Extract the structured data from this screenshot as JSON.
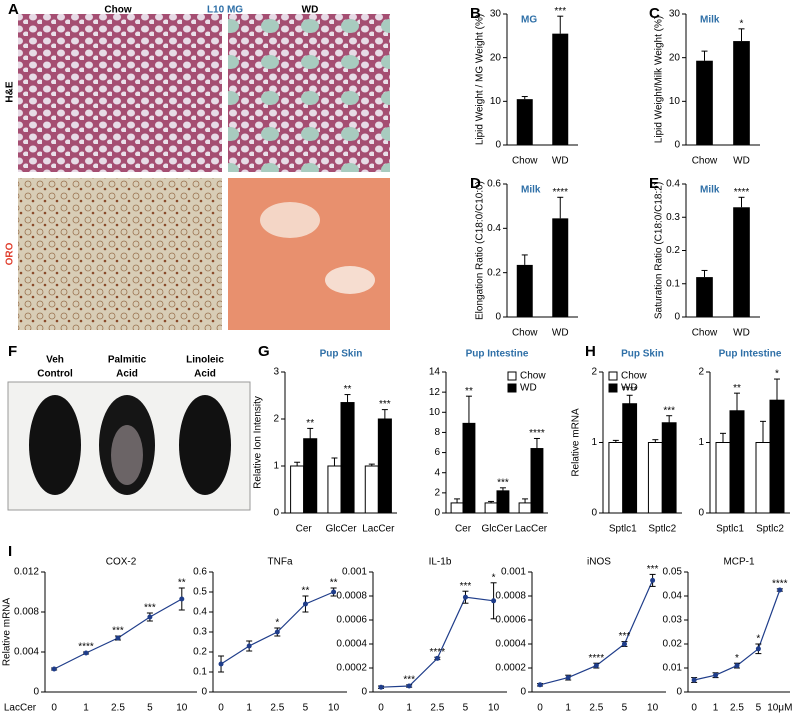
{
  "panel_a": {
    "letter": "A",
    "columns": [
      "Chow",
      "L10 MG",
      "WD"
    ],
    "rows": [
      "H&E",
      "ORO"
    ]
  },
  "panel_f": {
    "letter": "F",
    "labels": [
      [
        "Veh",
        "Control"
      ],
      [
        "Palmitic",
        "Acid"
      ],
      [
        "Linoleic",
        "Acid"
      ]
    ]
  },
  "chart_data": [
    {
      "type": "bar",
      "panel": "B",
      "title": "MG",
      "ylabel": "Lipid Weight / MG Weight (%)",
      "categories": [
        "Chow",
        "WD"
      ],
      "values": [
        10.5,
        25.5
      ],
      "errors": [
        0.6,
        4
      ],
      "significance": [
        null,
        "***"
      ],
      "color": "#000000",
      "ylim": [
        0,
        30
      ],
      "yticks": [
        0,
        10,
        20,
        30
      ]
    },
    {
      "type": "bar",
      "panel": "C",
      "title": "Milk",
      "ylabel": "Lipid Weight/Milk Weight (%)",
      "categories": [
        "Chow",
        "WD"
      ],
      "values": [
        19.3,
        23.8
      ],
      "errors": [
        2.2,
        2.8
      ],
      "significance": [
        null,
        "*"
      ],
      "color": "#000000",
      "ylim": [
        0,
        30
      ],
      "yticks": [
        0,
        10,
        20,
        30
      ]
    },
    {
      "type": "bar",
      "panel": "D",
      "title": "Milk",
      "ylabel": "Elongation Ratio (C18:0/C10:0)",
      "categories": [
        "Chow",
        "WD"
      ],
      "values": [
        0.235,
        0.445
      ],
      "errors": [
        0.045,
        0.095
      ],
      "significance": [
        null,
        "****"
      ],
      "color": "#000000",
      "ylim": [
        0,
        0.6
      ],
      "yticks": [
        0,
        0.2,
        0.4,
        0.6
      ]
    },
    {
      "type": "bar",
      "panel": "E",
      "title": "Milk",
      "ylabel": "Saturation Ratio (C18:0/C18:2)",
      "categories": [
        "Chow",
        "WD"
      ],
      "values": [
        0.12,
        0.33
      ],
      "errors": [
        0.02,
        0.03
      ],
      "significance": [
        null,
        "****"
      ],
      "color": "#000000",
      "ylim": [
        0,
        0.4
      ],
      "yticks": [
        0,
        0.1,
        0.2,
        0.3,
        0.4
      ]
    },
    {
      "type": "bar",
      "panel": "G",
      "title": "Pup Skin",
      "ylabel": "Relative Ion Intensity",
      "categories": [
        "Cer",
        "GlcCer",
        "LacCer"
      ],
      "series": [
        {
          "name": "Chow",
          "color": "#ffffff",
          "values": [
            1,
            1,
            1
          ],
          "errors": [
            0.08,
            0.17,
            0.04
          ]
        },
        {
          "name": "WD",
          "color": "#000000",
          "values": [
            1.58,
            2.35,
            2.0
          ],
          "errors": [
            0.22,
            0.17,
            0.2
          ]
        }
      ],
      "significance": [
        "**",
        "**",
        "***"
      ],
      "ylim": [
        0,
        3
      ],
      "yticks": [
        0,
        1,
        2,
        3
      ]
    },
    {
      "type": "bar",
      "title": "Pup Intestine",
      "categories": [
        "Cer",
        "GlcCer",
        "LacCer"
      ],
      "series": [
        {
          "name": "Chow",
          "color": "#ffffff",
          "values": [
            1,
            1,
            1
          ],
          "errors": [
            0.4,
            0.15,
            0.4
          ]
        },
        {
          "name": "WD",
          "color": "#000000",
          "values": [
            8.9,
            2.2,
            6.4
          ],
          "errors": [
            2.7,
            0.3,
            1.0
          ]
        }
      ],
      "significance": [
        "**",
        "***",
        "****"
      ],
      "legend": "upper right",
      "ylim": [
        0,
        14
      ],
      "yticks": [
        0,
        2,
        4,
        6,
        8,
        10,
        12,
        14
      ]
    },
    {
      "type": "bar",
      "panel": "H",
      "title": "Pup Skin",
      "ylabel": "Relative mRNA",
      "categories": [
        "Sptlc1",
        "Sptlc2"
      ],
      "series": [
        {
          "name": "Chow",
          "color": "#ffffff",
          "values": [
            1,
            1
          ],
          "errors": [
            0.03,
            0.04
          ]
        },
        {
          "name": "WD",
          "color": "#000000",
          "values": [
            1.55,
            1.28
          ],
          "errors": [
            0.12,
            0.1
          ]
        }
      ],
      "significance": [
        "****",
        "***"
      ],
      "legend": "upper left",
      "ylim": [
        0,
        2
      ],
      "yticks": [
        0,
        1,
        2
      ]
    },
    {
      "type": "bar",
      "title": "Pup Intestine",
      "categories": [
        "Sptlc1",
        "Sptlc2"
      ],
      "series": [
        {
          "name": "Chow",
          "color": "#ffffff",
          "values": [
            1,
            1
          ],
          "errors": [
            0.13,
            0.3
          ]
        },
        {
          "name": "WD",
          "color": "#000000",
          "values": [
            1.45,
            1.6
          ],
          "errors": [
            0.25,
            0.3
          ]
        }
      ],
      "significance": [
        "**",
        "*"
      ],
      "ylim": [
        0,
        2
      ],
      "yticks": [
        0,
        1,
        2
      ]
    },
    {
      "type": "line",
      "panel": "I",
      "title": "COX-2",
      "ylabel": "Relative mRNA",
      "xlabel": "LacCer",
      "categories": [
        "0",
        "1",
        "2.5",
        "5",
        "10"
      ],
      "values": [
        0.0023,
        0.0039,
        0.0054,
        0.0075,
        0.0093
      ],
      "errors": [
        0.0001,
        0.0001,
        0.0002,
        0.0004,
        0.0011
      ],
      "significance": [
        null,
        "****",
        "***",
        "***",
        "**"
      ],
      "color": "#1f3d8a",
      "ylim": [
        0,
        0.012
      ],
      "yticks": [
        0,
        0.004,
        0.008,
        0.012
      ]
    },
    {
      "type": "line",
      "title": "TNFa",
      "categories": [
        "0",
        "1",
        "2.5",
        "5",
        "10"
      ],
      "values": [
        0.14,
        0.23,
        0.3,
        0.44,
        0.5
      ],
      "errors": [
        0.04,
        0.025,
        0.02,
        0.04,
        0.02
      ],
      "significance": [
        null,
        null,
        "*",
        "**",
        "**"
      ],
      "color": "#1f3d8a",
      "ylim": [
        0,
        0.6
      ],
      "yticks": [
        0,
        0.1,
        0.2,
        0.3,
        0.4,
        0.5,
        0.6
      ]
    },
    {
      "type": "line",
      "title": "IL-1b",
      "categories": [
        "0",
        "1",
        "2.5",
        "5",
        "10"
      ],
      "values": [
        4e-05,
        5e-05,
        0.00028,
        0.00079,
        0.00076
      ],
      "errors": [
        1e-05,
        1e-05,
        1e-05,
        5e-05,
        0.00015
      ],
      "significance": [
        null,
        "***",
        "****",
        "***",
        "*"
      ],
      "color": "#1f3d8a",
      "ylim": [
        0,
        0.001
      ],
      "yticks": [
        0,
        0.0002,
        0.0004,
        0.0006,
        0.0008,
        0.001
      ]
    },
    {
      "type": "line",
      "title": "iNOS",
      "categories": [
        "0",
        "1",
        "2.5",
        "5",
        "10"
      ],
      "values": [
        6e-05,
        0.00012,
        0.00022,
        0.0004,
        0.00093
      ],
      "errors": [
        1e-05,
        2e-05,
        2e-05,
        2e-05,
        5e-05
      ],
      "significance": [
        null,
        null,
        "****",
        "***",
        "***"
      ],
      "color": "#1f3d8a",
      "ylim": [
        0,
        0.001
      ],
      "yticks": [
        0,
        0.0002,
        0.0004,
        0.0006,
        0.0008,
        0.001
      ]
    },
    {
      "type": "line",
      "title": "MCP-1",
      "categories": [
        "0",
        "1",
        "2.5",
        "5",
        "10μM"
      ],
      "values": [
        0.005,
        0.007,
        0.011,
        0.018,
        0.0425
      ],
      "errors": [
        0.001,
        0.001,
        0.001,
        0.002,
        0.0005
      ],
      "significance": [
        null,
        null,
        "*",
        "*",
        "****"
      ],
      "color": "#1f3d8a",
      "ylim": [
        0,
        0.05
      ],
      "yticks": [
        0,
        0.01,
        0.02,
        0.03,
        0.04,
        0.05
      ]
    }
  ]
}
